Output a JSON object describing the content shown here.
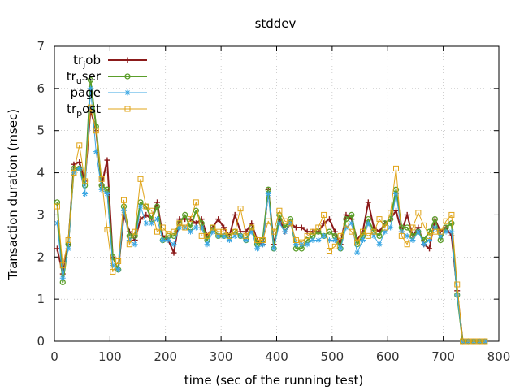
{
  "chart_data": {
    "type": "line",
    "title": "stddev",
    "xlabel": "time (sec of the running test)",
    "ylabel": "Transaction duration (msec)",
    "xlim": [
      0,
      800
    ],
    "ylim": [
      0,
      7
    ],
    "xticks": [
      0,
      100,
      200,
      300,
      400,
      500,
      600,
      700,
      800
    ],
    "yticks": [
      0,
      1,
      2,
      3,
      4,
      5,
      6,
      7
    ],
    "grid": true,
    "legend_position": "top-left",
    "x": [
      5,
      15,
      25,
      35,
      45,
      55,
      65,
      75,
      85,
      95,
      105,
      115,
      125,
      135,
      145,
      155,
      165,
      175,
      185,
      195,
      205,
      215,
      225,
      235,
      245,
      255,
      265,
      275,
      285,
      295,
      305,
      315,
      325,
      335,
      345,
      355,
      365,
      375,
      385,
      395,
      405,
      415,
      425,
      435,
      445,
      455,
      465,
      475,
      485,
      495,
      505,
      515,
      525,
      535,
      545,
      555,
      565,
      575,
      585,
      595,
      605,
      615,
      625,
      635,
      645,
      655,
      665,
      675,
      685,
      695,
      705,
      715,
      725,
      735,
      745,
      755,
      765,
      775
    ],
    "series": [
      {
        "name_parts": [
          "tr",
          "j",
          "ob"
        ],
        "color": "#8b1a1a",
        "marker": "plus",
        "values": [
          2.2,
          1.6,
          2.3,
          4.2,
          4.25,
          3.8,
          5.5,
          5.0,
          3.7,
          4.3,
          2.0,
          1.7,
          3.0,
          2.6,
          2.4,
          2.9,
          3.0,
          2.9,
          3.3,
          2.5,
          2.4,
          2.1,
          2.9,
          2.9,
          2.9,
          2.8,
          2.9,
          2.5,
          2.7,
          2.9,
          2.7,
          2.5,
          3.0,
          2.6,
          2.6,
          2.8,
          2.4,
          2.3,
          3.6,
          2.3,
          2.9,
          2.6,
          2.8,
          2.7,
          2.7,
          2.6,
          2.6,
          2.6,
          2.8,
          2.9,
          2.6,
          2.3,
          3.0,
          2.9,
          2.4,
          2.6,
          3.3,
          2.7,
          2.6,
          2.8,
          2.9,
          3.1,
          2.6,
          3.0,
          2.5,
          2.7,
          2.3,
          2.2,
          2.9,
          2.6,
          2.7,
          2.5,
          1.2,
          0.0,
          0.0,
          0.0,
          0.0,
          0.0
        ]
      },
      {
        "name_parts": [
          "tr",
          "u",
          "ser"
        ],
        "color": "#5b9e2a",
        "marker": "circle",
        "values": [
          3.3,
          1.4,
          2.3,
          4.1,
          4.1,
          3.7,
          6.2,
          5.1,
          3.7,
          3.6,
          2.0,
          1.7,
          3.2,
          2.5,
          2.5,
          3.3,
          3.2,
          2.9,
          3.2,
          2.4,
          2.5,
          2.5,
          2.8,
          3.0,
          2.7,
          3.1,
          2.8,
          2.4,
          2.7,
          2.5,
          2.5,
          2.5,
          2.6,
          2.5,
          2.4,
          2.7,
          2.3,
          2.4,
          3.6,
          2.2,
          3.0,
          2.7,
          2.9,
          2.2,
          2.2,
          2.4,
          2.5,
          2.6,
          2.5,
          2.6,
          2.5,
          2.2,
          2.9,
          3.0,
          2.3,
          2.5,
          2.9,
          2.6,
          2.5,
          2.8,
          2.9,
          3.6,
          2.7,
          2.7,
          2.5,
          2.6,
          2.4,
          2.6,
          2.9,
          2.4,
          2.7,
          2.8,
          1.1,
          0.0,
          0.0,
          0.0,
          0.0,
          0.0
        ]
      },
      {
        "name_parts": [
          "page",
          "",
          ""
        ],
        "color": "#3ba7e3",
        "marker": "star",
        "values": [
          2.8,
          1.5,
          2.2,
          4.0,
          4.1,
          3.5,
          6.0,
          4.5,
          3.6,
          3.5,
          1.8,
          1.7,
          3.1,
          2.4,
          2.3,
          3.2,
          2.8,
          2.8,
          2.9,
          2.4,
          2.4,
          2.3,
          2.7,
          2.7,
          2.6,
          2.7,
          2.7,
          2.3,
          2.6,
          2.5,
          2.5,
          2.4,
          2.5,
          2.5,
          2.4,
          2.6,
          2.2,
          2.3,
          3.5,
          2.2,
          2.8,
          2.6,
          2.8,
          2.3,
          2.3,
          2.3,
          2.4,
          2.4,
          2.5,
          2.4,
          2.4,
          2.2,
          2.7,
          2.8,
          2.1,
          2.4,
          2.8,
          2.5,
          2.3,
          2.6,
          2.7,
          3.5,
          2.6,
          2.5,
          2.4,
          2.6,
          2.3,
          2.4,
          2.7,
          2.5,
          2.6,
          2.6,
          1.1,
          0.0,
          0.0,
          0.0,
          0.0,
          0.0
        ]
      },
      {
        "name_parts": [
          "tr",
          "p",
          "ost"
        ],
        "color": "#e0a418",
        "marker": "square",
        "values": [
          3.2,
          1.8,
          2.4,
          4.0,
          4.65,
          3.8,
          5.55,
          5.0,
          3.85,
          2.65,
          1.65,
          1.9,
          3.35,
          2.3,
          2.6,
          3.85,
          3.2,
          3.1,
          2.6,
          2.7,
          2.55,
          2.6,
          2.8,
          2.7,
          2.9,
          3.3,
          2.5,
          2.5,
          2.7,
          2.6,
          2.6,
          2.5,
          2.6,
          3.15,
          2.5,
          2.7,
          2.4,
          2.4,
          2.85,
          2.6,
          3.1,
          2.85,
          2.8,
          2.4,
          2.35,
          2.5,
          2.6,
          2.7,
          3.0,
          2.15,
          2.25,
          2.5,
          2.75,
          2.6,
          2.35,
          2.6,
          2.5,
          2.6,
          2.9,
          2.7,
          3.05,
          4.1,
          2.5,
          2.3,
          2.7,
          3.05,
          2.75,
          2.5,
          2.6,
          2.6,
          2.85,
          3.0,
          1.35,
          0.0,
          0.0,
          0.0,
          0.0,
          0.0
        ]
      }
    ]
  }
}
